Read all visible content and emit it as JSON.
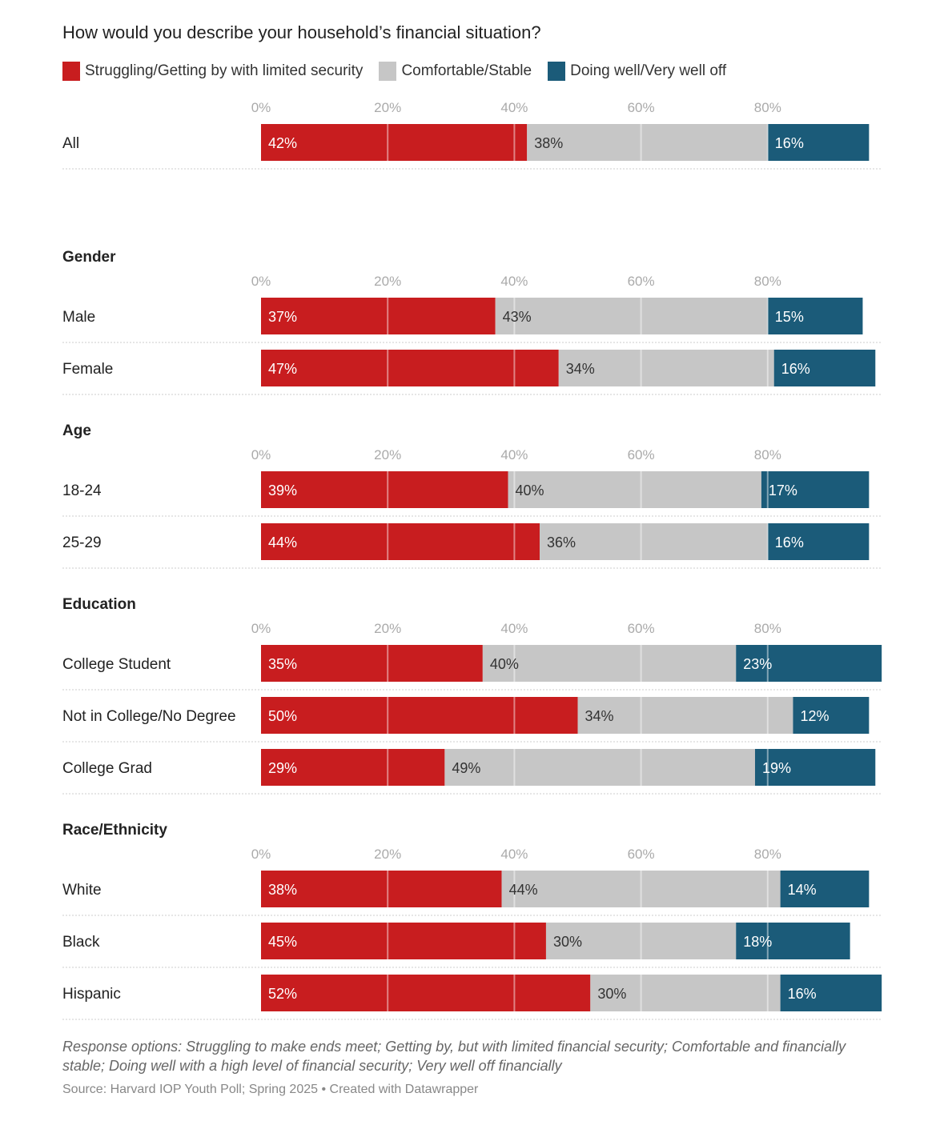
{
  "chart_data": {
    "type": "bar",
    "stacked": true,
    "orientation": "horizontal",
    "title": "How would you describe your household’s financial situation?",
    "series": [
      {
        "name": "Struggling/Getting by with limited security",
        "color": "#c81d1f"
      },
      {
        "name": "Comfortable/Stable",
        "color": "#c6c6c6"
      },
      {
        "name": "Doing well/Very well off",
        "color": "#1b5b79"
      }
    ],
    "x_ticks": [
      "0%",
      "20%",
      "40%",
      "60%",
      "80%"
    ],
    "xlim": [
      0,
      100
    ],
    "groups": [
      {
        "name": "",
        "rows": [
          {
            "label": "All",
            "values": [
              42,
              38,
              16
            ],
            "labels": [
              "42%",
              "38%",
              "16%"
            ]
          }
        ]
      },
      {
        "name": "Gender",
        "rows": [
          {
            "label": "Male",
            "values": [
              37,
              43,
              15
            ],
            "labels": [
              "37%",
              "43%",
              "15%"
            ]
          },
          {
            "label": "Female",
            "values": [
              47,
              34,
              16
            ],
            "labels": [
              "47%",
              "34%",
              "16%"
            ]
          }
        ]
      },
      {
        "name": "Age",
        "rows": [
          {
            "label": "18-24",
            "values": [
              39,
              40,
              17
            ],
            "labels": [
              "39%",
              "40%",
              "17%"
            ]
          },
          {
            "label": "25-29",
            "values": [
              44,
              36,
              16
            ],
            "labels": [
              "44%",
              "36%",
              "16%"
            ]
          }
        ]
      },
      {
        "name": "Education",
        "rows": [
          {
            "label": "College Student",
            "values": [
              35,
              40,
              23
            ],
            "labels": [
              "35%",
              "40%",
              "23%"
            ]
          },
          {
            "label": "Not in College/No Degree",
            "values": [
              50,
              34,
              12
            ],
            "labels": [
              "50%",
              "34%",
              "12%"
            ]
          },
          {
            "label": "College Grad",
            "values": [
              29,
              49,
              19
            ],
            "labels": [
              "29%",
              "49%",
              "19%"
            ]
          }
        ]
      },
      {
        "name": "Race/Ethnicity",
        "rows": [
          {
            "label": "White",
            "values": [
              38,
              44,
              14
            ],
            "labels": [
              "38%",
              "44%",
              "14%"
            ]
          },
          {
            "label": "Black",
            "values": [
              45,
              30,
              18
            ],
            "labels": [
              "45%",
              "30%",
              "18%"
            ]
          },
          {
            "label": "Hispanic",
            "values": [
              52,
              30,
              16
            ],
            "labels": [
              "52%",
              "30%",
              "16%"
            ]
          }
        ]
      }
    ]
  },
  "notes": "Response options: Struggling to make ends meet; Getting by, but with limited financial security; Comfortable and financially stable; Doing well with a high level of financial security; Very well off financially",
  "source": "Source: Harvard IOP Youth Poll; Spring 2025 • Created with Datawrapper"
}
